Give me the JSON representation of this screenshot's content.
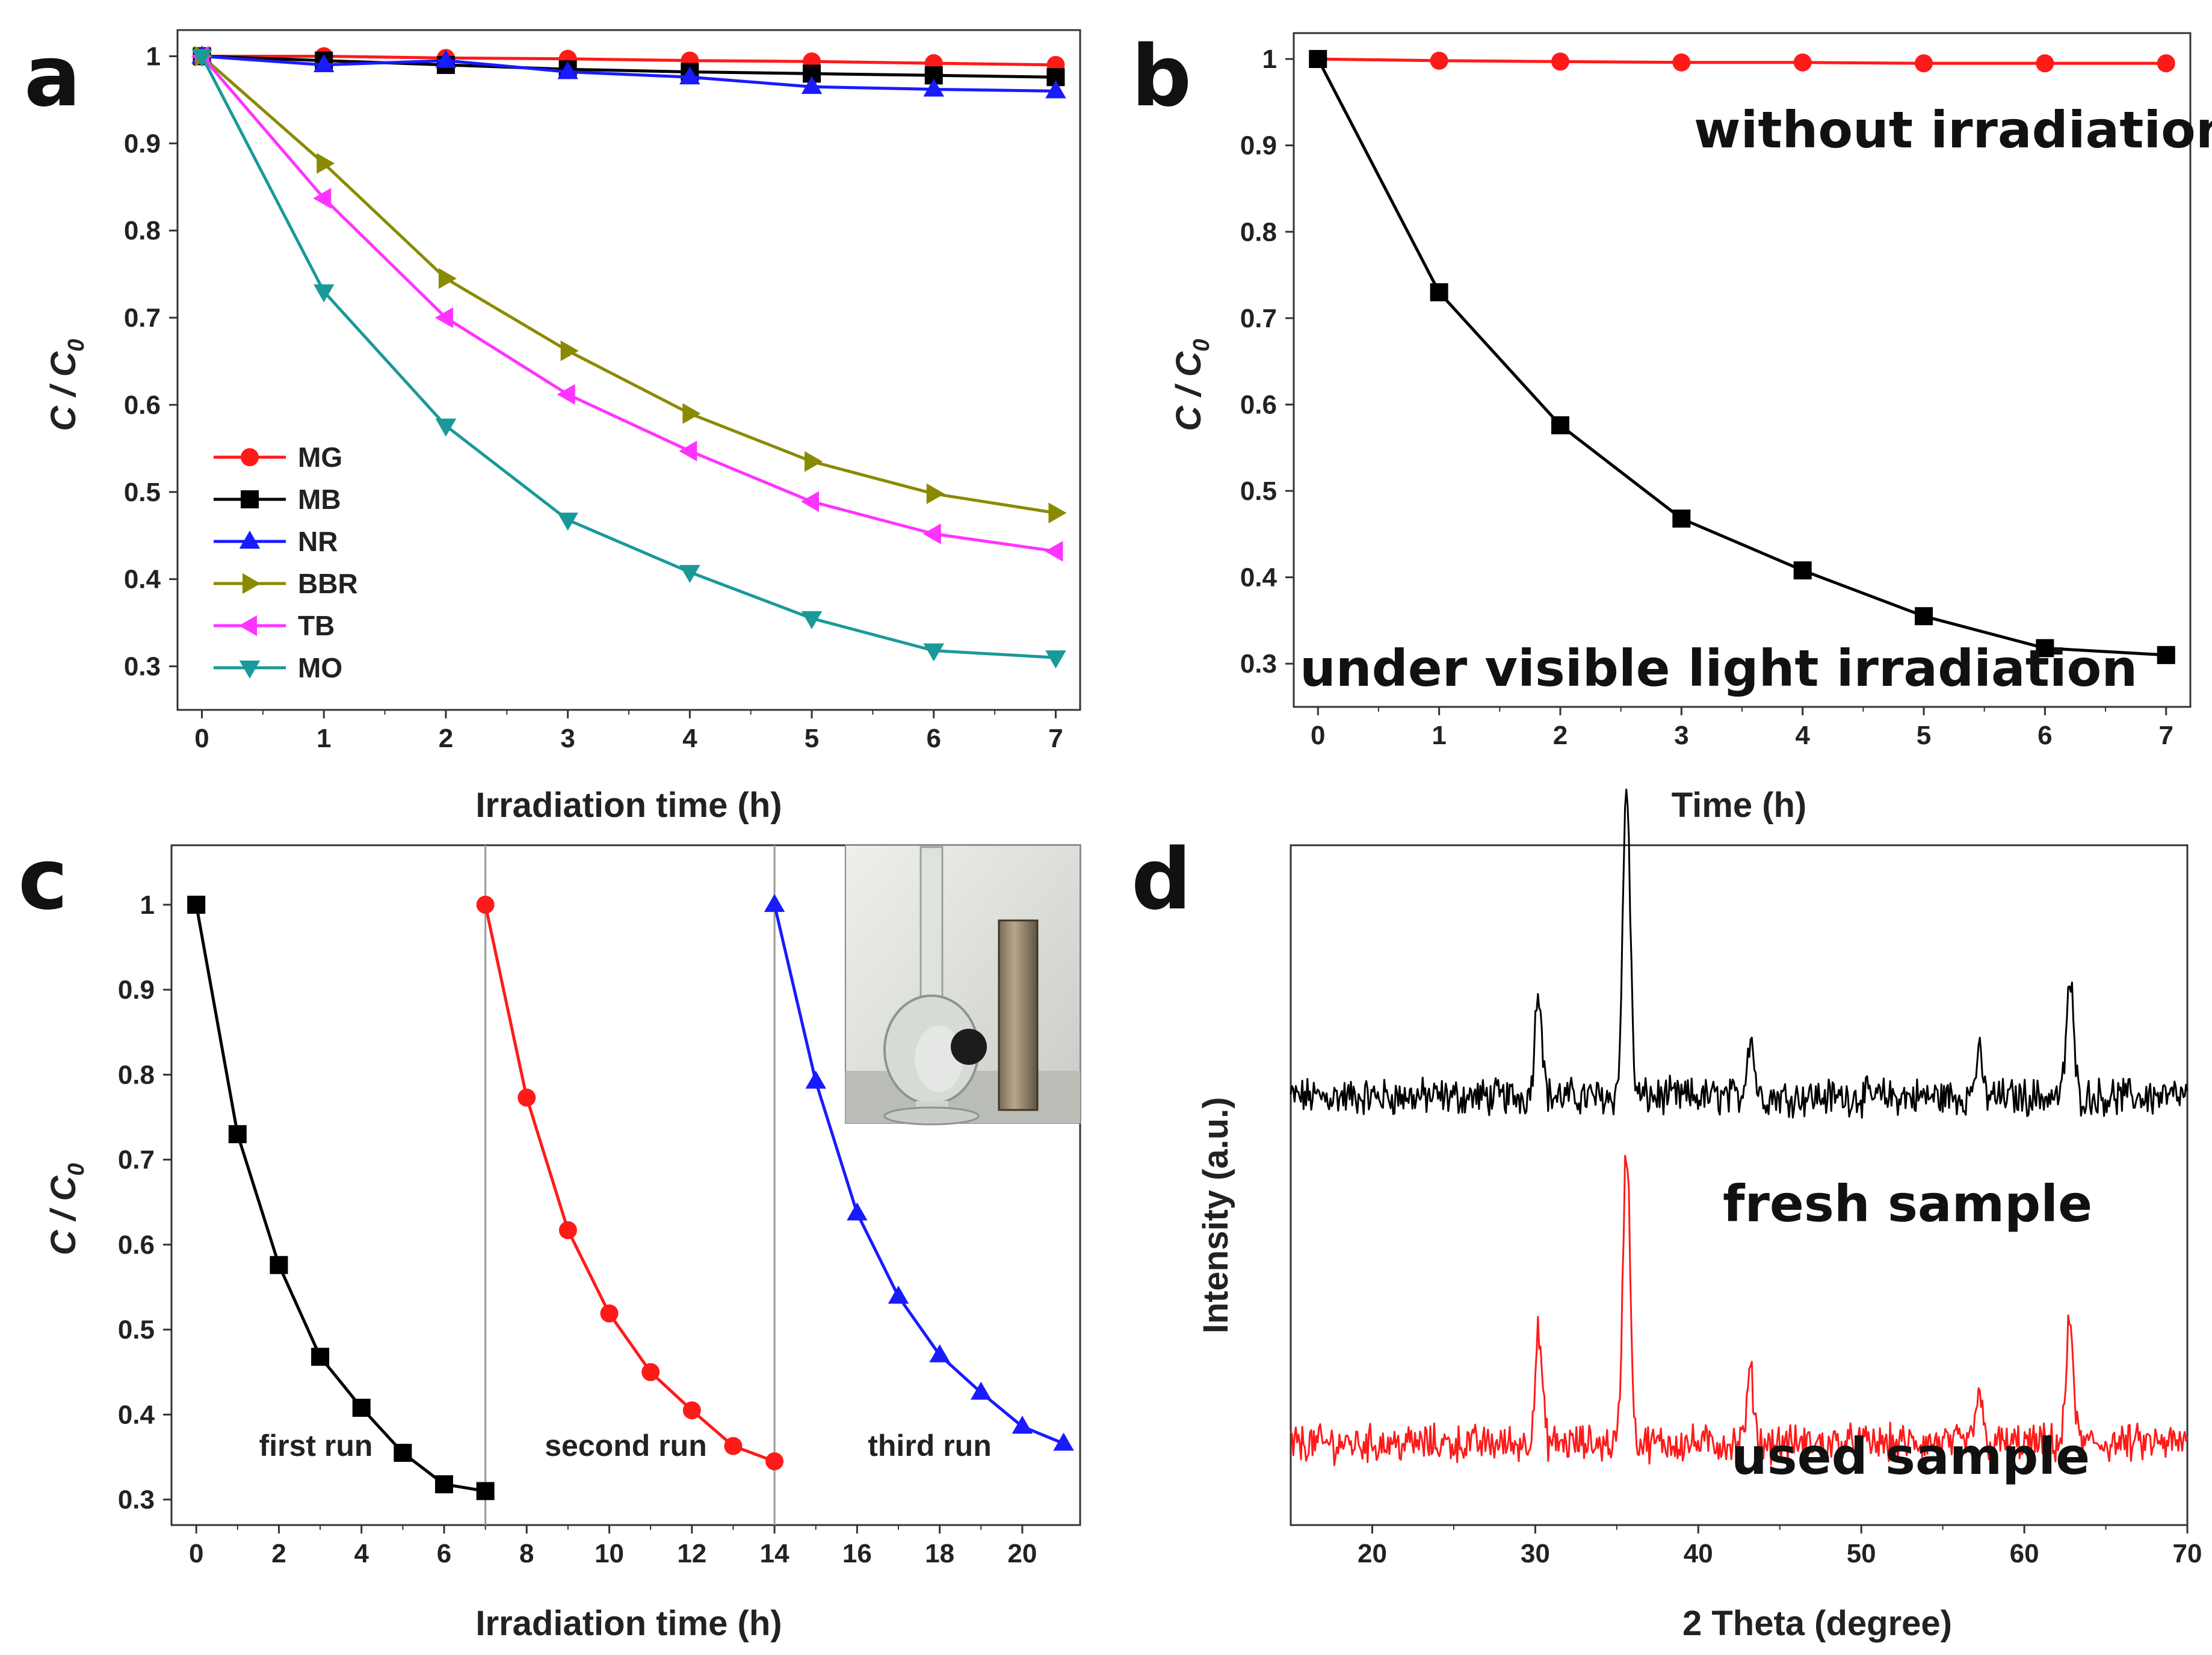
{
  "chart_data": [
    {
      "panel": "a",
      "type": "line",
      "x": [
        0,
        1,
        2,
        3,
        4,
        5,
        6,
        7
      ],
      "xlabel": "Irradiation time (h)",
      "ylabel": "C / C0",
      "xlim": [
        -0.2,
        7.2
      ],
      "ylim": [
        0.25,
        1.03
      ],
      "xticks": [
        0,
        1,
        2,
        3,
        4,
        5,
        6,
        7
      ],
      "yticks": [
        0.3,
        0.4,
        0.5,
        0.6,
        0.7,
        0.8,
        0.9,
        1.0
      ],
      "legend_position": "lower-left",
      "series": [
        {
          "name": "MG",
          "color": "#ff1a1a",
          "marker": "circle",
          "values": [
            1.0,
            1.0,
            0.998,
            0.997,
            0.995,
            0.994,
            0.992,
            0.99
          ]
        },
        {
          "name": "MB",
          "color": "#000000",
          "marker": "square",
          "values": [
            1.0,
            0.995,
            0.99,
            0.985,
            0.982,
            0.98,
            0.978,
            0.976
          ]
        },
        {
          "name": "NR",
          "color": "#1a1aff",
          "marker": "triangle-up",
          "values": [
            1.0,
            0.99,
            0.995,
            0.982,
            0.976,
            0.965,
            0.962,
            0.96
          ]
        },
        {
          "name": "BBR",
          "color": "#8a8a00",
          "marker": "triangle-right",
          "values": [
            1.0,
            0.877,
            0.745,
            0.662,
            0.59,
            0.535,
            0.498,
            0.476
          ]
        },
        {
          "name": "TB",
          "color": "#ff33ff",
          "marker": "triangle-left",
          "values": [
            1.0,
            0.837,
            0.7,
            0.612,
            0.547,
            0.489,
            0.452,
            0.432
          ]
        },
        {
          "name": "MO",
          "color": "#1a9999",
          "marker": "triangle-down",
          "values": [
            1.0,
            0.73,
            0.576,
            0.468,
            0.408,
            0.355,
            0.318,
            0.31
          ]
        }
      ]
    },
    {
      "panel": "b",
      "type": "line",
      "x": [
        0,
        1,
        2,
        3,
        4,
        5,
        6,
        7
      ],
      "xlabel": "Time (h)",
      "ylabel": "C / C0",
      "xlim": [
        -0.2,
        7.2
      ],
      "ylim": [
        0.25,
        1.03
      ],
      "xticks": [
        0,
        1,
        2,
        3,
        4,
        5,
        6,
        7
      ],
      "yticks": [
        0.3,
        0.4,
        0.5,
        0.6,
        0.7,
        0.8,
        0.9,
        1.0
      ],
      "annotations": [
        "without irradiation",
        "under visible light irradiation"
      ],
      "series": [
        {
          "color": "#ff1a1a",
          "marker": "circle",
          "values": [
            1.0,
            0.998,
            0.997,
            0.996,
            0.996,
            0.995,
            0.995,
            0.995
          ]
        },
        {
          "color": "#000000",
          "marker": "square",
          "values": [
            1.0,
            0.73,
            0.576,
            0.468,
            0.408,
            0.355,
            0.318,
            0.31
          ]
        }
      ]
    },
    {
      "panel": "c",
      "type": "line",
      "xlabel": "Irradiation time (h)",
      "ylabel": "C / C0",
      "xlim": [
        -0.6,
        21.4
      ],
      "ylim": [
        0.27,
        1.07
      ],
      "xticks": [
        0,
        2,
        4,
        6,
        8,
        10,
        12,
        14,
        16,
        18,
        20
      ],
      "yticks": [
        0.3,
        0.4,
        0.5,
        0.6,
        0.7,
        0.8,
        0.9,
        1.0
      ],
      "vlines": [
        7,
        14
      ],
      "run_labels": [
        "first run",
        "second run",
        "third run"
      ],
      "inset": "photo of flask and magnet",
      "series": [
        {
          "color": "#000000",
          "marker": "square",
          "x": [
            0,
            1,
            2,
            3,
            4,
            5,
            6,
            7
          ],
          "values": [
            1.0,
            0.73,
            0.576,
            0.468,
            0.408,
            0.355,
            0.318,
            0.31
          ]
        },
        {
          "color": "#ff1a1a",
          "marker": "circle",
          "x": [
            7,
            8,
            9,
            10,
            11,
            12,
            13,
            14
          ],
          "values": [
            1.0,
            0.773,
            0.617,
            0.519,
            0.45,
            0.405,
            0.363,
            0.345
          ]
        },
        {
          "color": "#1a1aff",
          "marker": "triangle-up",
          "x": [
            14,
            15,
            16,
            17,
            18,
            19,
            20,
            21
          ],
          "values": [
            1.0,
            0.792,
            0.637,
            0.539,
            0.47,
            0.426,
            0.386,
            0.366
          ]
        }
      ]
    },
    {
      "panel": "d",
      "type": "line",
      "xlabel": "2 Theta (degree)",
      "ylabel": "Intensity (a.u.)",
      "xlim": [
        15,
        70
      ],
      "xticks": [
        20,
        30,
        40,
        50,
        60,
        70
      ],
      "peaks": [
        30.2,
        35.6,
        43.2,
        57.2,
        62.8
      ],
      "series": [
        {
          "label": "fresh sample",
          "color": "#000000",
          "baseline": 0.37,
          "peak_heights": [
            0.16,
            0.46,
            0.09,
            0.06,
            0.17
          ]
        },
        {
          "label": "used sample",
          "color": "#ff1a1a",
          "baseline": 0.88,
          "peak_heights": [
            0.16,
            0.44,
            0.1,
            0.07,
            0.18
          ]
        }
      ]
    }
  ],
  "labels": {
    "a": "a",
    "b": "b",
    "c": "c",
    "d": "d",
    "xlabel_a": "Irradiation time (h)",
    "xlabel_b": "Time (h)",
    "xlabel_c": "Irradiation time (h)",
    "xlabel_d": "2 Theta (degree)",
    "ylabel_c": "C / C",
    "ylabel_sub": "0",
    "ylabel_d": "Intensity (a.u.)",
    "without": "without irradiation",
    "under": "under visible light irradiation",
    "first": "first run",
    "second": "second run",
    "third": "third run",
    "fresh": "fresh sample",
    "used": "used sample"
  }
}
